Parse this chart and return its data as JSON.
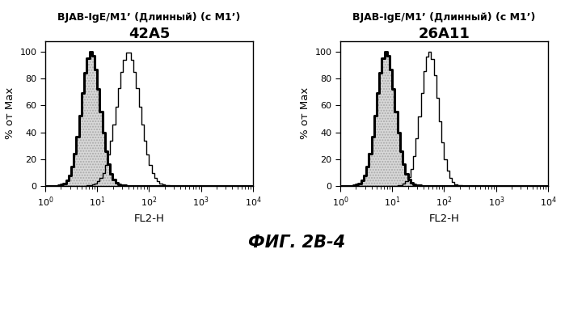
{
  "title_left": "42A5",
  "title_right": "26A11",
  "subtitle": "BJAB-IgE/M1’ (Длинный) (с M1’)",
  "xlabel": "FL2-H",
  "ylabel": "% от Max",
  "ylim": [
    0,
    108
  ],
  "figure_caption": "ФИГ. 2B-4",
  "background_color": "#ffffff",
  "yticks": [
    0,
    20,
    40,
    60,
    80,
    100
  ],
  "caption_fontsize": 15,
  "title_fontsize": 13,
  "subtitle_fontsize": 9,
  "left_filled": {
    "mu_log": 0.88,
    "sigma_log": 0.18,
    "amplitude": 100
  },
  "left_thin": {
    "mu_log": 1.6,
    "sigma_log": 0.22,
    "amplitude": 100
  },
  "right_filled": {
    "mu_log": 0.88,
    "sigma_log": 0.18,
    "amplitude": 100
  },
  "right_thin": {
    "mu_log": 1.72,
    "sigma_log": 0.17,
    "amplitude": 100
  },
  "fill_color": "#b8b8b8",
  "fill_alpha": 0.55
}
